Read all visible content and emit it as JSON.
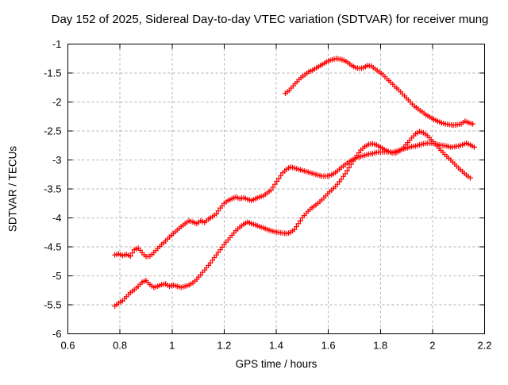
{
  "chart_data": {
    "type": "scatter",
    "title": "Day 152 of 2025, Sidereal Day-to-day VTEC variation (SDTVAR) for receiver mung",
    "xlabel": "GPS time / hours",
    "ylabel": "SDTVAR / TECUs",
    "xlim": [
      0.6,
      2.2
    ],
    "ylim": [
      -6,
      -1
    ],
    "xticks": [
      0.6,
      0.8,
      1.0,
      1.2,
      1.4,
      1.6,
      1.8,
      2.0,
      2.2
    ],
    "xtick_labels": [
      "0.6",
      "0.8",
      "1",
      "1.2",
      "1.4",
      "1.6",
      "1.8",
      "2",
      "2.2"
    ],
    "yticks": [
      -1,
      -1.5,
      -2,
      -2.5,
      -3,
      -3.5,
      -4,
      -4.5,
      -5,
      -5.5,
      -6
    ],
    "ytick_labels": [
      "-1",
      "-1.5",
      "-2",
      "-2.5",
      "-3",
      "-3.5",
      "-4",
      "-4.5",
      "-5",
      "-5.5",
      "-6"
    ],
    "grid": true,
    "legend": "none",
    "marker": "plus",
    "marker_color": "#ff0000",
    "grid_color": "#b0b0b0",
    "border_color": "#000000",
    "series": [
      {
        "name": "series-1-upper",
        "points": [
          [
            1.435,
            -1.85
          ],
          [
            1.45,
            -1.8
          ],
          [
            1.465,
            -1.72
          ],
          [
            1.48,
            -1.65
          ],
          [
            1.495,
            -1.58
          ],
          [
            1.51,
            -1.53
          ],
          [
            1.525,
            -1.48
          ],
          [
            1.54,
            -1.45
          ],
          [
            1.555,
            -1.41
          ],
          [
            1.57,
            -1.37
          ],
          [
            1.585,
            -1.33
          ],
          [
            1.6,
            -1.29
          ],
          [
            1.615,
            -1.27
          ],
          [
            1.63,
            -1.25
          ],
          [
            1.645,
            -1.26
          ],
          [
            1.66,
            -1.28
          ],
          [
            1.675,
            -1.32
          ],
          [
            1.69,
            -1.37
          ],
          [
            1.705,
            -1.41
          ],
          [
            1.72,
            -1.42
          ],
          [
            1.735,
            -1.41
          ],
          [
            1.75,
            -1.37
          ],
          [
            1.765,
            -1.38
          ],
          [
            1.78,
            -1.43
          ],
          [
            1.795,
            -1.48
          ],
          [
            1.81,
            -1.53
          ],
          [
            1.825,
            -1.6
          ],
          [
            1.84,
            -1.66
          ],
          [
            1.855,
            -1.73
          ],
          [
            1.87,
            -1.79
          ],
          [
            1.885,
            -1.86
          ],
          [
            1.9,
            -1.93
          ],
          [
            1.915,
            -2.0
          ],
          [
            1.93,
            -2.07
          ],
          [
            1.945,
            -2.12
          ],
          [
            1.96,
            -2.17
          ],
          [
            1.975,
            -2.22
          ],
          [
            1.99,
            -2.26
          ],
          [
            2.005,
            -2.3
          ],
          [
            2.02,
            -2.33
          ],
          [
            2.035,
            -2.36
          ],
          [
            2.05,
            -2.38
          ],
          [
            2.065,
            -2.39
          ],
          [
            2.08,
            -2.4
          ],
          [
            2.095,
            -2.39
          ],
          [
            2.11,
            -2.38
          ],
          [
            2.125,
            -2.33
          ],
          [
            2.14,
            -2.36
          ],
          [
            2.155,
            -2.38
          ]
        ]
      },
      {
        "name": "series-2-middle",
        "points": [
          [
            0.78,
            -4.64
          ],
          [
            0.795,
            -4.62
          ],
          [
            0.81,
            -4.65
          ],
          [
            0.825,
            -4.63
          ],
          [
            0.84,
            -4.66
          ],
          [
            0.855,
            -4.55
          ],
          [
            0.87,
            -4.52
          ],
          [
            0.885,
            -4.6
          ],
          [
            0.9,
            -4.67
          ],
          [
            0.915,
            -4.66
          ],
          [
            0.93,
            -4.6
          ],
          [
            0.945,
            -4.53
          ],
          [
            0.96,
            -4.46
          ],
          [
            0.975,
            -4.4
          ],
          [
            0.99,
            -4.33
          ],
          [
            1.005,
            -4.27
          ],
          [
            1.02,
            -4.21
          ],
          [
            1.035,
            -4.15
          ],
          [
            1.05,
            -4.1
          ],
          [
            1.065,
            -4.05
          ],
          [
            1.08,
            -4.07
          ],
          [
            1.095,
            -4.1
          ],
          [
            1.11,
            -4.05
          ],
          [
            1.125,
            -4.08
          ],
          [
            1.14,
            -4.02
          ],
          [
            1.155,
            -3.98
          ],
          [
            1.17,
            -3.93
          ],
          [
            1.185,
            -3.83
          ],
          [
            1.2,
            -3.75
          ],
          [
            1.215,
            -3.7
          ],
          [
            1.23,
            -3.67
          ],
          [
            1.245,
            -3.64
          ],
          [
            1.26,
            -3.67
          ],
          [
            1.275,
            -3.65
          ],
          [
            1.29,
            -3.68
          ],
          [
            1.305,
            -3.7
          ],
          [
            1.32,
            -3.67
          ],
          [
            1.335,
            -3.64
          ],
          [
            1.35,
            -3.62
          ],
          [
            1.365,
            -3.57
          ],
          [
            1.38,
            -3.52
          ],
          [
            1.395,
            -3.42
          ],
          [
            1.41,
            -3.32
          ],
          [
            1.425,
            -3.22
          ],
          [
            1.44,
            -3.16
          ],
          [
            1.455,
            -3.12
          ],
          [
            1.47,
            -3.14
          ],
          [
            1.485,
            -3.16
          ],
          [
            1.5,
            -3.18
          ],
          [
            1.515,
            -3.2
          ],
          [
            1.53,
            -3.22
          ],
          [
            1.545,
            -3.24
          ],
          [
            1.56,
            -3.26
          ],
          [
            1.575,
            -3.28
          ],
          [
            1.59,
            -3.28
          ],
          [
            1.605,
            -3.27
          ],
          [
            1.62,
            -3.24
          ],
          [
            1.635,
            -3.19
          ],
          [
            1.65,
            -3.13
          ],
          [
            1.665,
            -3.08
          ],
          [
            1.68,
            -3.03
          ],
          [
            1.695,
            -2.99
          ],
          [
            1.71,
            -2.96
          ],
          [
            1.725,
            -2.94
          ],
          [
            1.74,
            -2.92
          ],
          [
            1.755,
            -2.9
          ],
          [
            1.77,
            -2.89
          ],
          [
            1.785,
            -2.87
          ],
          [
            1.8,
            -2.86
          ],
          [
            1.815,
            -2.86
          ],
          [
            1.83,
            -2.86
          ],
          [
            1.845,
            -2.87
          ],
          [
            1.86,
            -2.85
          ],
          [
            1.875,
            -2.83
          ],
          [
            1.89,
            -2.81
          ],
          [
            1.905,
            -2.79
          ],
          [
            1.92,
            -2.77
          ],
          [
            1.935,
            -2.76
          ],
          [
            1.95,
            -2.74
          ],
          [
            1.965,
            -2.72
          ],
          [
            1.98,
            -2.71
          ],
          [
            1.995,
            -2.71
          ],
          [
            2.01,
            -2.72
          ],
          [
            2.025,
            -2.74
          ],
          [
            2.04,
            -2.75
          ],
          [
            2.055,
            -2.76
          ],
          [
            2.07,
            -2.78
          ],
          [
            2.085,
            -2.77
          ],
          [
            2.1,
            -2.76
          ],
          [
            2.115,
            -2.74
          ],
          [
            2.13,
            -2.71
          ],
          [
            2.145,
            -2.74
          ],
          [
            2.16,
            -2.78
          ]
        ]
      },
      {
        "name": "series-3-lower",
        "points": [
          [
            0.78,
            -5.52
          ],
          [
            0.795,
            -5.47
          ],
          [
            0.81,
            -5.43
          ],
          [
            0.825,
            -5.36
          ],
          [
            0.84,
            -5.29
          ],
          [
            0.855,
            -5.24
          ],
          [
            0.87,
            -5.18
          ],
          [
            0.885,
            -5.11
          ],
          [
            0.9,
            -5.08
          ],
          [
            0.915,
            -5.15
          ],
          [
            0.93,
            -5.2
          ],
          [
            0.945,
            -5.18
          ],
          [
            0.96,
            -5.15
          ],
          [
            0.975,
            -5.14
          ],
          [
            0.99,
            -5.18
          ],
          [
            1.005,
            -5.16
          ],
          [
            1.02,
            -5.18
          ],
          [
            1.035,
            -5.2
          ],
          [
            1.05,
            -5.18
          ],
          [
            1.065,
            -5.16
          ],
          [
            1.08,
            -5.12
          ],
          [
            1.095,
            -5.06
          ],
          [
            1.11,
            -4.98
          ],
          [
            1.125,
            -4.9
          ],
          [
            1.14,
            -4.82
          ],
          [
            1.155,
            -4.73
          ],
          [
            1.17,
            -4.64
          ],
          [
            1.185,
            -4.55
          ],
          [
            1.2,
            -4.46
          ],
          [
            1.215,
            -4.38
          ],
          [
            1.23,
            -4.3
          ],
          [
            1.245,
            -4.22
          ],
          [
            1.26,
            -4.16
          ],
          [
            1.275,
            -4.11
          ],
          [
            1.29,
            -4.07
          ],
          [
            1.305,
            -4.1
          ],
          [
            1.32,
            -4.12
          ],
          [
            1.335,
            -4.15
          ],
          [
            1.35,
            -4.17
          ],
          [
            1.365,
            -4.2
          ],
          [
            1.38,
            -4.22
          ],
          [
            1.395,
            -4.24
          ],
          [
            1.41,
            -4.25
          ],
          [
            1.425,
            -4.26
          ],
          [
            1.44,
            -4.27
          ],
          [
            1.455,
            -4.25
          ],
          [
            1.47,
            -4.2
          ],
          [
            1.485,
            -4.1
          ],
          [
            1.5,
            -4.0
          ],
          [
            1.515,
            -3.92
          ],
          [
            1.53,
            -3.85
          ],
          [
            1.545,
            -3.8
          ],
          [
            1.56,
            -3.75
          ],
          [
            1.575,
            -3.69
          ],
          [
            1.59,
            -3.62
          ],
          [
            1.605,
            -3.55
          ],
          [
            1.62,
            -3.49
          ],
          [
            1.635,
            -3.42
          ],
          [
            1.65,
            -3.33
          ],
          [
            1.665,
            -3.24
          ],
          [
            1.68,
            -3.13
          ],
          [
            1.695,
            -3.02
          ],
          [
            1.71,
            -2.92
          ],
          [
            1.725,
            -2.83
          ],
          [
            1.74,
            -2.77
          ],
          [
            1.755,
            -2.73
          ],
          [
            1.77,
            -2.72
          ],
          [
            1.785,
            -2.74
          ],
          [
            1.8,
            -2.78
          ],
          [
            1.815,
            -2.82
          ],
          [
            1.83,
            -2.85
          ],
          [
            1.845,
            -2.88
          ],
          [
            1.86,
            -2.88
          ],
          [
            1.875,
            -2.84
          ],
          [
            1.89,
            -2.78
          ],
          [
            1.905,
            -2.7
          ],
          [
            1.92,
            -2.62
          ],
          [
            1.935,
            -2.55
          ],
          [
            1.95,
            -2.51
          ],
          [
            1.965,
            -2.53
          ],
          [
            1.98,
            -2.58
          ],
          [
            1.995,
            -2.65
          ],
          [
            2.01,
            -2.72
          ],
          [
            2.025,
            -2.8
          ],
          [
            2.04,
            -2.87
          ],
          [
            2.055,
            -2.94
          ],
          [
            2.07,
            -3.0
          ],
          [
            2.085,
            -3.07
          ],
          [
            2.1,
            -3.14
          ],
          [
            2.115,
            -3.2
          ],
          [
            2.13,
            -3.26
          ],
          [
            2.145,
            -3.31
          ]
        ]
      }
    ]
  }
}
